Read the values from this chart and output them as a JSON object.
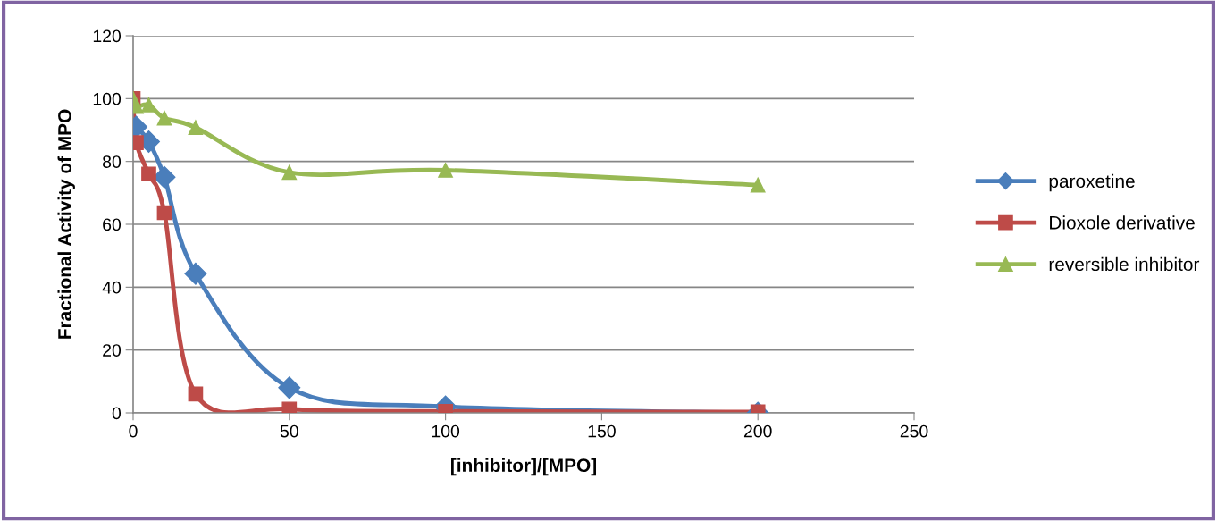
{
  "chart_data": {
    "type": "line",
    "xlabel": "[inhibitor]/[MPO]",
    "ylabel": "Fractional Activity of MPO",
    "xlim": [
      0,
      250
    ],
    "xticks": [
      0,
      50,
      100,
      150,
      200,
      250
    ],
    "ylim": [
      0,
      120
    ],
    "yticks": [
      0,
      20,
      40,
      60,
      80,
      100,
      120
    ],
    "grid": "y",
    "legend": "right",
    "line_style": "solid",
    "series": [
      {
        "name": "paroxetine",
        "color": "#4a7ebb",
        "marker": "diamond",
        "x": [
          1,
          5,
          10,
          20,
          50,
          100,
          200
        ],
        "values": [
          91,
          86.3,
          75,
          44.3,
          8,
          2,
          0
        ]
      },
      {
        "name": "Dioxole derivative",
        "color": "#be4b48",
        "marker": "square",
        "x": [
          0,
          1,
          5,
          10,
          20,
          50,
          100,
          200
        ],
        "values": [
          100,
          86,
          76,
          63.7,
          6,
          1.2,
          0.5,
          0.3
        ]
      },
      {
        "name": "reversible inhibitor",
        "color": "#98b954",
        "marker": "triangle",
        "x": [
          0,
          1,
          5,
          10,
          20,
          50,
          100,
          200
        ],
        "values": [
          100,
          97.5,
          98,
          93.8,
          90.8,
          76.5,
          77.2,
          72.5
        ]
      }
    ]
  }
}
